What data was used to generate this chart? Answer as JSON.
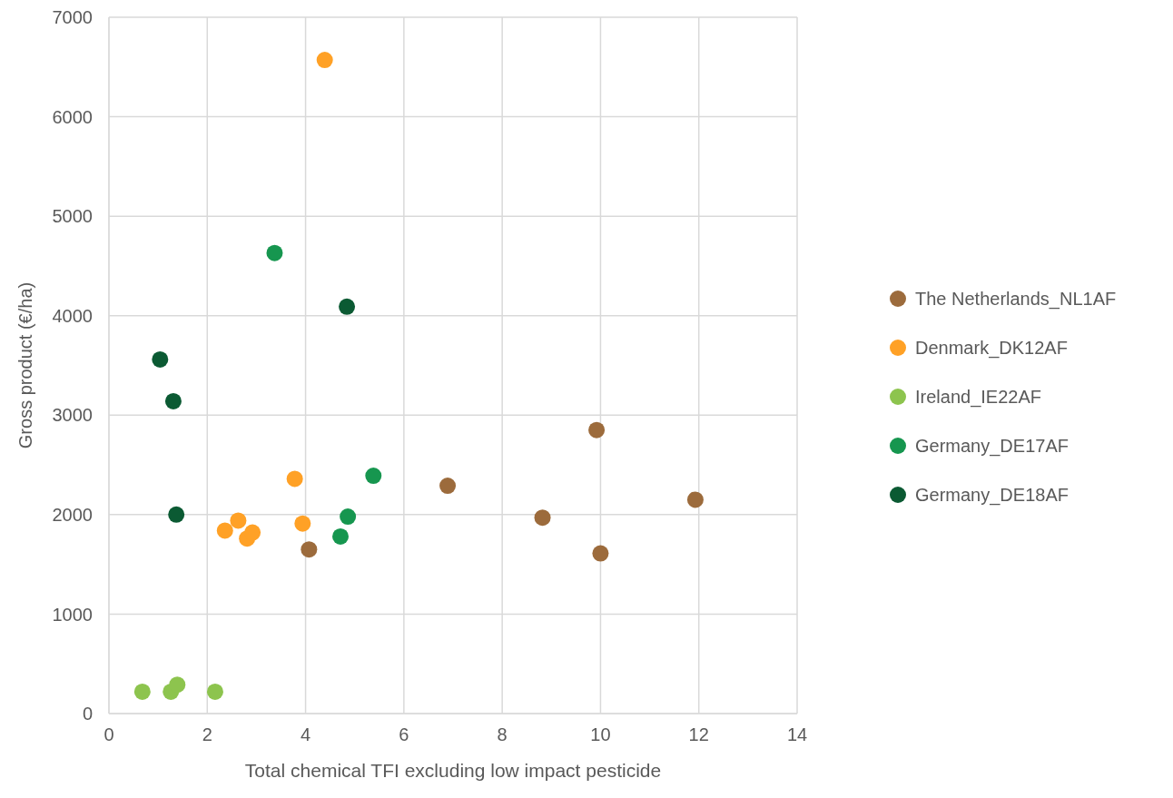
{
  "chart_data": {
    "type": "scatter",
    "xlabel": "Total chemical TFI excluding low impact pesticide",
    "ylabel": "Gross product (€/ha)",
    "xlim": [
      0,
      14
    ],
    "xticks": [
      0,
      2,
      4,
      6,
      8,
      10,
      12,
      14
    ],
    "ylim": [
      0,
      7000
    ],
    "yticks": [
      0,
      1000,
      2000,
      3000,
      4000,
      5000,
      6000,
      7000
    ],
    "grid": true,
    "legend": "right",
    "marker": "circle",
    "series": [
      {
        "name": "The Netherlands_NL1AF",
        "color": "#9c6b3c",
        "x": [
          4.07,
          6.89,
          8.82,
          9.92,
          10.0,
          11.93
        ],
        "values": [
          1650,
          2290,
          1970,
          2850,
          1610,
          2150
        ]
      },
      {
        "name": "Denmark_DK12AF",
        "color": "#ffa126",
        "x": [
          4.39,
          3.78,
          3.94,
          2.36,
          2.63,
          2.81,
          2.92
        ],
        "values": [
          6570,
          2360,
          1910,
          1840,
          1940,
          1760,
          1820
        ]
      },
      {
        "name": "Ireland_IE22AF",
        "color": "#8dc44e",
        "x": [
          0.68,
          1.26,
          1.39,
          2.16
        ],
        "values": [
          220,
          220,
          290,
          220
        ]
      },
      {
        "name": "Germany_DE17AF",
        "color": "#16964f",
        "x": [
          3.37,
          5.38,
          4.86,
          4.71
        ],
        "values": [
          4630,
          2390,
          1980,
          1780
        ]
      },
      {
        "name": "Germany_DE18AF",
        "color": "#0b5a33",
        "x": [
          4.84,
          1.04,
          1.31,
          1.37
        ],
        "values": [
          4090,
          3560,
          3140,
          2000
        ]
      }
    ]
  }
}
